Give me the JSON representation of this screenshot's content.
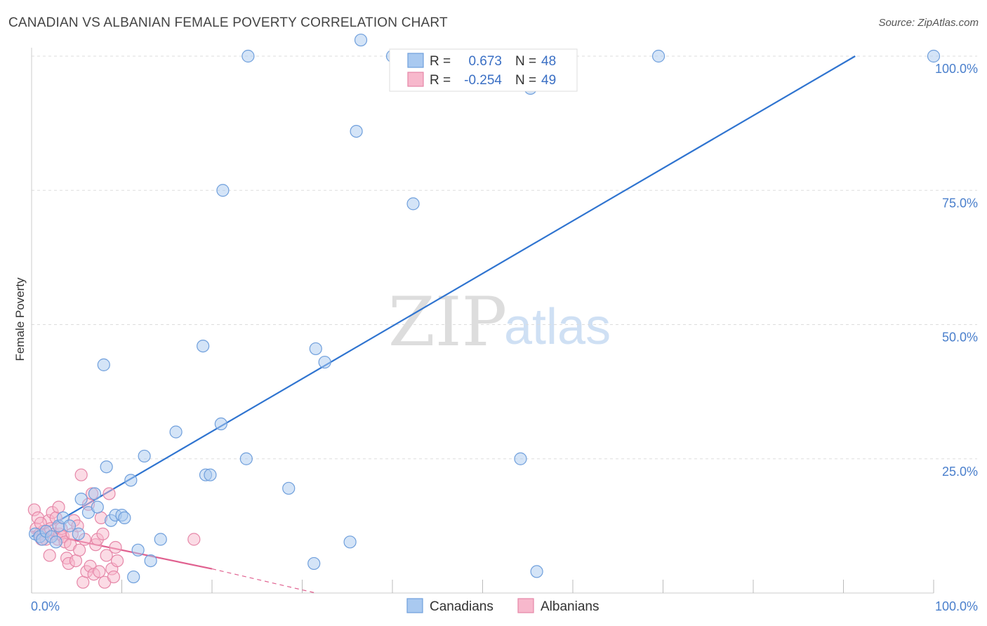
{
  "title": "CANADIAN VS ALBANIAN FEMALE POVERTY CORRELATION CHART",
  "source": "Source: ZipAtlas.com",
  "watermark": {
    "zip": "ZIP",
    "atlas": "atlas"
  },
  "colors": {
    "canadians_fill": "#a9c9f0",
    "canadians_stroke": "#6f9fdc",
    "canadians_line": "#2f74d0",
    "albanians_fill": "#f7b8cc",
    "albanians_stroke": "#e687a8",
    "albanians_line": "#e0608f",
    "grid": "#dddddd",
    "tick_text": "#4a7fcc"
  },
  "stats": [
    {
      "series": "Canadians",
      "r_label": "R =",
      "r_value": "0.673",
      "n_label": "N =",
      "n_value": "48"
    },
    {
      "series": "Albanians",
      "r_label": "R =",
      "r_value": "-0.254",
      "n_label": "N =",
      "n_value": "49"
    }
  ],
  "chart_data": {
    "type": "scatter",
    "title": "CANADIAN VS ALBANIAN FEMALE POVERTY CORRELATION CHART",
    "xlabel": "",
    "ylabel": "Female Poverty",
    "xlim": [
      0,
      100
    ],
    "ylim": [
      0,
      102
    ],
    "x_tick_labels": [
      "0.0%",
      "100.0%"
    ],
    "y_ticks": [
      25,
      50,
      75,
      100
    ],
    "y_tick_labels": [
      "25.0%",
      "50.0%",
      "75.0%",
      "100.0%"
    ],
    "legend": [
      "Canadians",
      "Albanians"
    ],
    "series": [
      {
        "name": "Canadians",
        "points": [
          [
            0.4,
            11
          ],
          [
            0.9,
            10.5
          ],
          [
            1.2,
            10
          ],
          [
            1.6,
            11.5
          ],
          [
            2.2,
            10.5
          ],
          [
            2.7,
            9.5
          ],
          [
            3.0,
            12.5
          ],
          [
            3.5,
            14
          ],
          [
            4.2,
            12.5
          ],
          [
            5.2,
            11
          ],
          [
            5.5,
            17.5
          ],
          [
            6.3,
            15
          ],
          [
            7.0,
            18.5
          ],
          [
            7.3,
            16
          ],
          [
            8.0,
            42.5
          ],
          [
            8.3,
            23.5
          ],
          [
            8.8,
            13.5
          ],
          [
            9.3,
            14.5
          ],
          [
            10.0,
            14.5
          ],
          [
            10.3,
            14
          ],
          [
            11.0,
            21
          ],
          [
            11.3,
            3
          ],
          [
            11.8,
            8
          ],
          [
            12.5,
            25.5
          ],
          [
            13.2,
            6
          ],
          [
            14.3,
            10
          ],
          [
            16.0,
            30
          ],
          [
            19.0,
            46
          ],
          [
            19.3,
            22
          ],
          [
            19.8,
            22
          ],
          [
            21.0,
            31.5
          ],
          [
            21.2,
            75
          ],
          [
            23.8,
            25
          ],
          [
            24.0,
            100
          ],
          [
            28.5,
            19.5
          ],
          [
            31.3,
            5.5
          ],
          [
            31.5,
            45.5
          ],
          [
            32.5,
            43
          ],
          [
            35.3,
            9.5
          ],
          [
            36.0,
            86
          ],
          [
            40.0,
            100
          ],
          [
            42.3,
            72.5
          ],
          [
            54.2,
            25
          ],
          [
            55.3,
            94
          ],
          [
            56.0,
            4
          ],
          [
            69.5,
            100
          ],
          [
            100.0,
            100
          ],
          [
            36.5,
            103
          ]
        ]
      },
      {
        "name": "Albanians",
        "points": [
          [
            0.3,
            15.5
          ],
          [
            0.5,
            12
          ],
          [
            0.7,
            14
          ],
          [
            0.9,
            11
          ],
          [
            1.1,
            10
          ],
          [
            1.3,
            11.5
          ],
          [
            1.6,
            10
          ],
          [
            1.9,
            13.5
          ],
          [
            2.1,
            12
          ],
          [
            2.3,
            15
          ],
          [
            2.5,
            11
          ],
          [
            2.7,
            14
          ],
          [
            2.9,
            10
          ],
          [
            3.1,
            11
          ],
          [
            3.3,
            12
          ],
          [
            3.5,
            10.5
          ],
          [
            3.7,
            9.5
          ],
          [
            3.9,
            6.5
          ],
          [
            4.1,
            5.5
          ],
          [
            4.3,
            9
          ],
          [
            4.5,
            11
          ],
          [
            4.7,
            13.5
          ],
          [
            4.9,
            6
          ],
          [
            5.1,
            12.5
          ],
          [
            5.3,
            8
          ],
          [
            5.5,
            22
          ],
          [
            5.7,
            2
          ],
          [
            5.9,
            10
          ],
          [
            6.1,
            4
          ],
          [
            6.3,
            16.5
          ],
          [
            6.5,
            5
          ],
          [
            6.7,
            18.5
          ],
          [
            6.9,
            3.5
          ],
          [
            7.1,
            9
          ],
          [
            7.3,
            10
          ],
          [
            7.5,
            4
          ],
          [
            7.7,
            14
          ],
          [
            7.9,
            11
          ],
          [
            8.1,
            2
          ],
          [
            8.3,
            7
          ],
          [
            8.6,
            18.5
          ],
          [
            8.9,
            4.5
          ],
          [
            9.1,
            3
          ],
          [
            9.3,
            8.5
          ],
          [
            9.5,
            6
          ],
          [
            3.0,
            16
          ],
          [
            1.0,
            13
          ],
          [
            2.0,
            7
          ],
          [
            18.0,
            10
          ]
        ]
      }
    ],
    "trend_lines": [
      {
        "name": "Canadians",
        "x": [
          0,
          91.3
        ],
        "y": [
          10.5,
          100
        ],
        "style": "solid"
      },
      {
        "name": "Albanians",
        "x": [
          0,
          20
        ],
        "y": [
          11.5,
          4.5
        ],
        "style": "solid"
      },
      {
        "name": "Albanians",
        "x": [
          20,
          31.5
        ],
        "y": [
          4.5,
          0
        ],
        "style": "dashed"
      }
    ]
  }
}
